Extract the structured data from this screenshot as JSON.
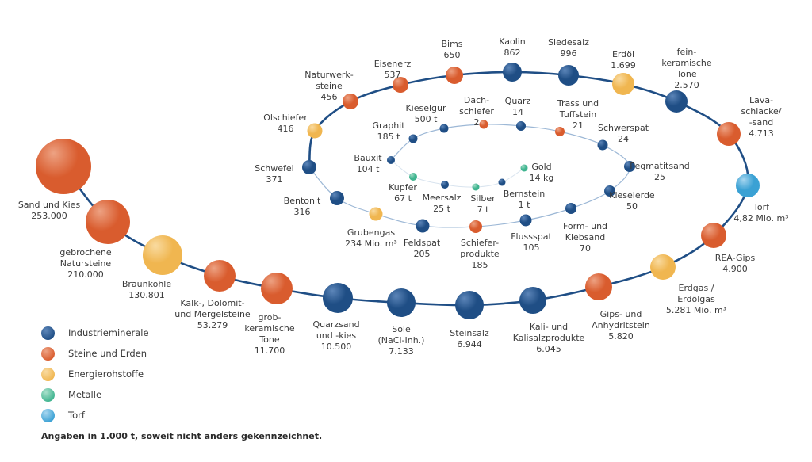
{
  "categories": {
    "industrie": {
      "label": "Industrieminerale",
      "color": "#1f4e85",
      "light": "#5d86b9"
    },
    "steine": {
      "label": "Steine und Erden",
      "color": "#d95c2e",
      "light": "#eda283"
    },
    "energie": {
      "label": "Energierohstoffe",
      "color": "#f0b650",
      "light": "#f9dba1"
    },
    "metalle": {
      "label": "Metalle",
      "color": "#3fb48f",
      "light": "#a9e0cb"
    },
    "torf": {
      "label": "Torf",
      "color": "#3aa1d4",
      "light": "#a7d6ef"
    }
  },
  "legend": [
    "industrie",
    "steine",
    "energie",
    "metalle",
    "torf"
  ],
  "outer_ring": [
    {
      "lines": [
        "Sand und Kies",
        "253.000"
      ],
      "cat": "steine",
      "value": 253000
    },
    {
      "lines": [
        "gebrochene",
        "Natursteine",
        "210.000"
      ],
      "cat": "steine",
      "value": 210000
    },
    {
      "lines": [
        "Braunkohle",
        "130.801"
      ],
      "cat": "energie",
      "value": 130801
    },
    {
      "lines": [
        "Kalk-, Dolomit-",
        "und Mergelsteine",
        "53.279"
      ],
      "cat": "steine",
      "value": 53279
    },
    {
      "lines": [
        "grob-",
        "keramische",
        "Tone",
        "11.700"
      ],
      "cat": "steine",
      "value": 11700
    },
    {
      "lines": [
        "Quarzsand",
        "und -kies",
        "10.500"
      ],
      "cat": "industrie",
      "value": 10500
    },
    {
      "lines": [
        "Sole",
        "(NaCl-Inh.)",
        "7.133"
      ],
      "cat": "industrie",
      "value": 7133
    },
    {
      "lines": [
        "Steinsalz",
        "6.944"
      ],
      "cat": "industrie",
      "value": 6944
    },
    {
      "lines": [
        "Kali- und",
        "Kalisalzprodukte",
        "6.045"
      ],
      "cat": "industrie",
      "value": 6045
    },
    {
      "lines": [
        "Gips- und",
        "Anhydritstein",
        "5.820"
      ],
      "cat": "steine",
      "value": 5820
    },
    {
      "lines": [
        "Erdgas /",
        "Erdölgas",
        "5.281 Mio. m³"
      ],
      "cat": "energie",
      "value": 5281
    },
    {
      "lines": [
        "REA-Gips",
        "4.900"
      ],
      "cat": "steine",
      "value": 4900
    },
    {
      "lines": [
        "Torf",
        "4,82 Mio. m³"
      ],
      "cat": "torf",
      "value": 4820
    },
    {
      "lines": [
        "Lava-",
        "schlacke/",
        "-sand",
        "4.713"
      ],
      "cat": "steine",
      "value": 4713
    },
    {
      "lines": [
        "fein-",
        "keramische",
        "Tone",
        "2.570"
      ],
      "cat": "industrie",
      "value": 2570
    },
    {
      "lines": [
        "Erdöl",
        "1.699"
      ],
      "cat": "energie",
      "value": 1699
    },
    {
      "lines": [
        "Siedesalz",
        "996"
      ],
      "cat": "industrie",
      "value": 996
    },
    {
      "lines": [
        "Kaolin",
        "862"
      ],
      "cat": "industrie",
      "value": 862
    },
    {
      "lines": [
        "Bims",
        "650"
      ],
      "cat": "steine",
      "value": 650
    },
    {
      "lines": [
        "Eisenerz",
        "537"
      ],
      "cat": "steine",
      "value": 537
    },
    {
      "lines": [
        "Naturwerk-",
        "steine",
        "456"
      ],
      "cat": "steine",
      "value": 456
    },
    {
      "lines": [
        "Ölschiefer",
        "416"
      ],
      "cat": "energie",
      "value": 416
    },
    {
      "lines": [
        "Schwefel",
        "371"
      ],
      "cat": "industrie",
      "value": 371
    },
    {
      "lines": [
        "Bentonit",
        "316"
      ],
      "cat": "industrie",
      "value": 316
    },
    {
      "lines": [
        "Grubengas",
        "234 Mio. m³"
      ],
      "cat": "energie",
      "value": 234
    },
    {
      "lines": [
        "Feldspat",
        "205"
      ],
      "cat": "industrie",
      "value": 205
    },
    {
      "lines": [
        "Schiefer-",
        "produkte",
        "185"
      ],
      "cat": "steine",
      "value": 185
    },
    {
      "lines": [
        "Flussspat",
        "105"
      ],
      "cat": "industrie",
      "value": 105
    },
    {
      "lines": [
        "Form- und",
        "Klebsand",
        "70"
      ],
      "cat": "industrie",
      "value": 70
    },
    {
      "lines": [
        "Kieselerde",
        "50"
      ],
      "cat": "industrie",
      "value": 50
    },
    {
      "lines": [
        "Pegmatitsand",
        "25"
      ],
      "cat": "industrie",
      "value": 25
    },
    {
      "lines": [
        "Schwerspat",
        "24"
      ],
      "cat": "industrie",
      "value": 24
    },
    {
      "lines": [
        "Trass und",
        "Tuffstein",
        "21"
      ],
      "cat": "steine",
      "value": 21
    },
    {
      "lines": [
        "Quarz",
        "14"
      ],
      "cat": "industrie",
      "value": 14
    },
    {
      "lines": [
        "Dach-",
        "schiefer",
        "2"
      ],
      "cat": "steine",
      "value": 2
    },
    {
      "lines": [
        "Kieselgur",
        "500 t"
      ],
      "cat": "industrie",
      "value": 0.5
    },
    {
      "lines": [
        "Graphit",
        "185 t"
      ],
      "cat": "industrie",
      "value": 0.185
    },
    {
      "lines": [
        "Bauxit",
        "104 t"
      ],
      "cat": "industrie",
      "value": 0.104
    },
    {
      "lines": [
        "Kupfer",
        "67 t"
      ],
      "cat": "metalle",
      "value": 0.067
    },
    {
      "lines": [
        "Meersalz",
        "25 t"
      ],
      "cat": "industrie",
      "value": 0.025
    },
    {
      "lines": [
        "Silber",
        "7 t"
      ],
      "cat": "metalle",
      "value": 0.007
    },
    {
      "lines": [
        "Bernstein",
        "1 t"
      ],
      "cat": "industrie",
      "value": 0.001
    },
    {
      "lines": [
        "Gold",
        "14 kg"
      ],
      "cat": "metalle",
      "value": 1.4e-05
    }
  ],
  "footnote": "Angaben in 1.000 t, soweit nicht anders gekennzeichnet."
}
